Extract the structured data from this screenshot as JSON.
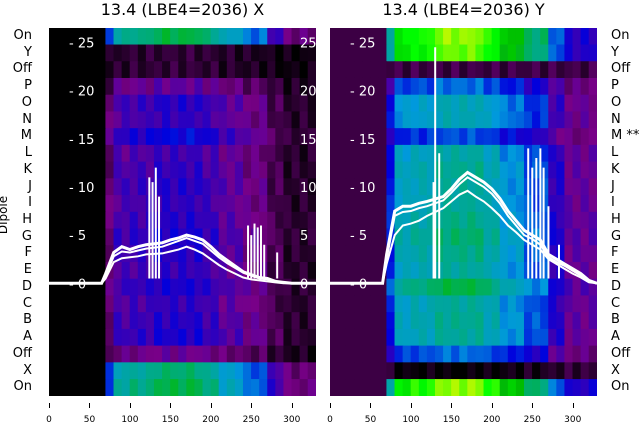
{
  "chart_data": [
    {
      "type": "heatmap",
      "title": "13.4 (LBE4=2036) X",
      "ylabel": "Dipole",
      "rows": [
        "On",
        "Y",
        "Off",
        "P",
        "O",
        "N",
        "M",
        "L",
        "K",
        "J",
        "I",
        "H",
        "G",
        "F",
        "E",
        "D",
        "C",
        "B",
        "A",
        "Off",
        "X",
        "On"
      ],
      "background": 0.0,
      "amplitudes": [
        0.45,
        0.04,
        0.04,
        0.12,
        0.17,
        0.16,
        0.2,
        0.15,
        0.16,
        0.17,
        0.16,
        0.17,
        0.18,
        0.17,
        0.16,
        0.18,
        0.16,
        0.17,
        0.18,
        0.11,
        0.42,
        0.45
      ],
      "x_ticks": [
        0,
        50,
        100,
        150,
        200,
        250,
        300
      ],
      "xlim": [
        0,
        330
      ],
      "y_ticks": [
        0,
        5,
        10,
        15,
        20,
        25
      ],
      "ylim": [
        -11.7,
        26.5
      ],
      "trace_x": [
        0,
        60,
        65,
        70,
        80,
        90,
        100,
        110,
        120,
        140,
        150,
        160,
        170,
        180,
        190,
        200,
        210,
        220,
        230,
        240,
        250,
        260,
        270,
        280,
        290,
        300,
        310,
        320,
        330
      ],
      "traces": [
        [
          0,
          0,
          0,
          1,
          3.2,
          3.8,
          3.5,
          3.8,
          4,
          4.2,
          4.5,
          4.7,
          5,
          4.8,
          4.5,
          3.8,
          3,
          2.4,
          1.8,
          1.2,
          0.9,
          0.6,
          0.5,
          0.2,
          0.1,
          0,
          0,
          0,
          0
        ],
        [
          0,
          0,
          0,
          0.8,
          2.8,
          3.3,
          3.2,
          3.4,
          3.6,
          3.8,
          4.1,
          4.4,
          4.7,
          4.4,
          4.1,
          3.4,
          2.7,
          2.1,
          1.6,
          1.1,
          0.8,
          0.5,
          0.4,
          0.2,
          0.1,
          0,
          0,
          0,
          0
        ],
        [
          0,
          0,
          0,
          0.5,
          2.2,
          2.6,
          2.7,
          2.8,
          3,
          3.1,
          3.3,
          3.5,
          3.8,
          3.5,
          3.1,
          2.5,
          1.9,
          1.4,
          1,
          0.6,
          0.4,
          0.3,
          0.2,
          0.1,
          0,
          0,
          0,
          0,
          0
        ]
      ],
      "spikes": [
        [
          124,
          11
        ],
        [
          128,
          10.5
        ],
        [
          132,
          12
        ],
        [
          136,
          9
        ],
        [
          246,
          6
        ],
        [
          250,
          5
        ],
        [
          254,
          6.2
        ],
        [
          258,
          5.8
        ],
        [
          262,
          6
        ],
        [
          266,
          4
        ],
        [
          282,
          3.2
        ]
      ]
    },
    {
      "type": "heatmap",
      "title": "13.4 (LBE4=2036) Y",
      "rows": [
        "On",
        "Y",
        "Off",
        "P",
        "O",
        "N",
        "M **",
        "L",
        "K",
        "J",
        "I",
        "H",
        "G",
        "F",
        "E",
        "D",
        "C",
        "B",
        "A",
        "Off",
        "X",
        "On"
      ],
      "background": 0.05,
      "amplitudes": [
        0.62,
        0.6,
        0.0,
        0.22,
        0.3,
        0.3,
        0.2,
        0.32,
        0.34,
        0.33,
        0.33,
        0.35,
        0.37,
        0.35,
        0.33,
        0.4,
        0.33,
        0.34,
        0.33,
        0.22,
        -0.05,
        0.62
      ],
      "x_ticks": [
        0,
        50,
        100,
        150,
        200,
        250,
        300
      ],
      "xlim": [
        0,
        330
      ],
      "y_ticks": [
        0,
        5,
        10,
        15,
        20,
        25
      ],
      "ylim": [
        -11.7,
        26.5
      ],
      "trace_x": [
        0,
        60,
        65,
        70,
        80,
        90,
        100,
        110,
        120,
        140,
        150,
        160,
        170,
        180,
        190,
        200,
        210,
        220,
        230,
        240,
        250,
        260,
        270,
        280,
        290,
        300,
        310,
        320,
        330
      ],
      "traces": [
        [
          0,
          0,
          0,
          3,
          7.5,
          8,
          8,
          8.3,
          8.5,
          9,
          9.8,
          10.8,
          11.5,
          11,
          10.5,
          9.8,
          8.8,
          7.5,
          6.5,
          5.5,
          5,
          4.5,
          3,
          2.5,
          2,
          1.5,
          1,
          0.3,
          0
        ],
        [
          0,
          0,
          0,
          2.5,
          7,
          7.4,
          7.5,
          7.8,
          8,
          8.6,
          9.4,
          10.3,
          11,
          10.5,
          10,
          9.3,
          8.3,
          7,
          6,
          5,
          4.6,
          4,
          2.7,
          2.2,
          1.8,
          1.3,
          0.8,
          0.2,
          0
        ],
        [
          0,
          0,
          0,
          2,
          5,
          6,
          6.2,
          6.5,
          7,
          7.8,
          8.5,
          9.2,
          9.6,
          9,
          8.5,
          7.8,
          7,
          6,
          5.3,
          4.5,
          4,
          3.5,
          2.5,
          2,
          1.5,
          1,
          0.6,
          0.1,
          0
        ]
      ],
      "spikes": [
        [
          128,
          10.5
        ],
        [
          130,
          24.5
        ],
        [
          135,
          13.5
        ],
        [
          245,
          14
        ],
        [
          250,
          12
        ],
        [
          255,
          13
        ],
        [
          260,
          14
        ],
        [
          264,
          12
        ],
        [
          270,
          8
        ],
        [
          283,
          4
        ]
      ]
    }
  ],
  "colormap": [
    "#000000",
    "#780088",
    "#0000dd",
    "#0099dd",
    "#00aa88",
    "#00bb00",
    "#00ff00",
    "#ccf800",
    "#ffcc00"
  ]
}
